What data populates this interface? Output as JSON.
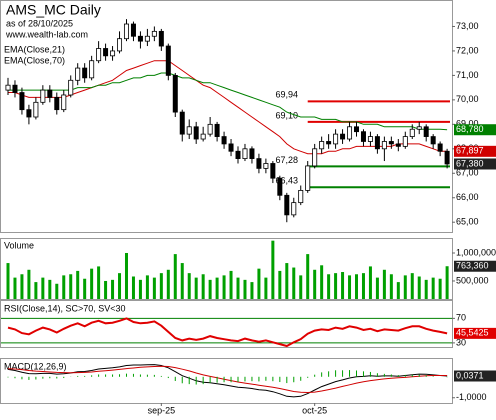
{
  "chart_data": [
    {
      "type": "candlestick",
      "title": "AMS_MC Daily",
      "subtitle": "as of 28/10/2025",
      "source": "www.wealth-lab.com",
      "open": [
        70.4,
        70.6,
        70.3,
        69.6,
        69.3,
        69.9,
        70.4,
        70.1,
        69.6,
        70.2,
        70.8,
        71.3,
        70.9,
        71.6,
        72.1,
        71.8,
        72.0,
        72.5,
        73.1,
        72.6,
        72.4,
        72.6,
        72.8,
        72.2,
        71.0,
        69.5,
        68.6,
        68.9,
        68.4,
        68.6,
        69.0,
        68.5,
        68.2,
        67.9,
        67.6,
        68.0,
        67.6,
        67.2,
        67.4,
        66.8,
        66.1,
        65.3,
        65.8,
        66.3,
        67.3,
        68.0,
        68.3,
        68.2,
        68.6,
        68.4,
        68.9,
        68.7,
        68.3,
        68.5,
        68.0,
        68.3,
        68.2,
        68.1,
        68.5,
        68.8,
        68.9,
        68.5,
        68.2,
        67.9
      ],
      "high": [
        70.9,
        70.8,
        70.5,
        69.8,
        70.1,
        70.6,
        70.6,
        70.3,
        70.4,
        71.0,
        71.5,
        71.5,
        71.8,
        72.4,
        72.3,
        72.2,
        72.8,
        73.3,
        73.2,
        72.8,
        72.9,
        73.0,
        72.9,
        72.3,
        71.1,
        69.6,
        69.2,
        69.1,
        68.9,
        69.3,
        69.1,
        68.7,
        68.4,
        68.1,
        68.2,
        68.1,
        67.8,
        67.6,
        67.5,
        66.9,
        66.2,
        66.0,
        66.5,
        67.5,
        68.2,
        68.5,
        68.6,
        68.8,
        68.8,
        69.1,
        69.1,
        68.8,
        68.7,
        68.6,
        68.5,
        68.5,
        68.4,
        68.7,
        69.0,
        69.1,
        69.0,
        68.6,
        68.3,
        68.0
      ],
      "low": [
        70.2,
        70.1,
        69.4,
        69.0,
        69.2,
        69.8,
        69.9,
        69.4,
        69.5,
        70.1,
        70.6,
        70.7,
        70.8,
        71.5,
        71.6,
        71.6,
        71.9,
        72.4,
        72.4,
        72.1,
        72.2,
        72.4,
        72.0,
        70.8,
        69.3,
        68.3,
        68.4,
        68.2,
        68.3,
        68.5,
        68.3,
        68.0,
        67.7,
        67.4,
        67.5,
        67.4,
        67.0,
        67.0,
        66.6,
        65.9,
        65.0,
        65.2,
        65.7,
        66.2,
        67.2,
        67.8,
        68.0,
        68.0,
        68.2,
        68.3,
        68.5,
        68.1,
        68.1,
        67.8,
        67.5,
        68.0,
        67.9,
        68.0,
        68.4,
        68.6,
        68.3,
        68.0,
        67.7,
        67.2
      ],
      "close": [
        70.6,
        70.3,
        69.6,
        69.3,
        69.9,
        70.4,
        70.1,
        69.6,
        70.2,
        70.8,
        71.3,
        70.9,
        71.6,
        72.1,
        71.8,
        72.0,
        72.5,
        73.1,
        72.6,
        72.4,
        72.6,
        72.8,
        72.2,
        71.0,
        69.5,
        68.6,
        68.9,
        68.4,
        68.6,
        69.0,
        68.5,
        68.2,
        67.9,
        67.6,
        68.0,
        67.6,
        67.2,
        67.4,
        66.8,
        66.1,
        65.3,
        65.8,
        66.3,
        67.3,
        68.0,
        68.3,
        68.2,
        68.6,
        68.4,
        68.9,
        68.7,
        68.3,
        68.5,
        68.0,
        68.3,
        68.2,
        68.1,
        68.5,
        68.8,
        68.9,
        68.5,
        68.2,
        67.9,
        67.38
      ],
      "close_label": "67,380",
      "series": [
        {
          "name": "EMA(Close,21)",
          "color": "#d00000",
          "last_label": "67,897",
          "values": [
            70.3,
            70.3,
            70.2,
            70.1,
            70.1,
            70.1,
            70.1,
            70.1,
            70.1,
            70.2,
            70.3,
            70.4,
            70.5,
            70.6,
            70.7,
            70.8,
            71.0,
            71.2,
            71.3,
            71.4,
            71.5,
            71.6,
            71.6,
            71.6,
            71.4,
            71.2,
            71.0,
            70.8,
            70.6,
            70.5,
            70.3,
            70.1,
            69.9,
            69.7,
            69.5,
            69.3,
            69.1,
            68.9,
            68.7,
            68.5,
            68.2,
            68.0,
            67.9,
            67.8,
            67.8,
            67.8,
            67.9,
            67.9,
            68.0,
            68.0,
            68.1,
            68.1,
            68.1,
            68.1,
            68.1,
            68.1,
            68.2,
            68.2,
            68.2,
            68.2,
            68.1,
            68.0,
            67.9,
            67.897
          ]
        },
        {
          "name": "EMA(Close,70)",
          "color": "#008000",
          "last_label": "68,780",
          "values": [
            70.4,
            70.4,
            70.4,
            70.4,
            70.4,
            70.4,
            70.4,
            70.4,
            70.4,
            70.4,
            70.5,
            70.5,
            70.5,
            70.6,
            70.6,
            70.7,
            70.7,
            70.8,
            70.9,
            70.9,
            71.0,
            71.0,
            71.1,
            71.1,
            71.0,
            70.9,
            70.9,
            70.8,
            70.7,
            70.7,
            70.6,
            70.5,
            70.4,
            70.3,
            70.2,
            70.1,
            70.0,
            69.9,
            69.8,
            69.7,
            69.5,
            69.4,
            69.3,
            69.3,
            69.3,
            69.2,
            69.2,
            69.2,
            69.1,
            69.1,
            69.1,
            69.0,
            69.0,
            69.0,
            68.9,
            68.9,
            68.9,
            68.9,
            68.9,
            68.8,
            68.8,
            68.8,
            68.8,
            68.78
          ]
        }
      ],
      "levels": [
        {
          "value": 69.94,
          "label": "69,94",
          "color": "#e00000"
        },
        {
          "value": 69.1,
          "label": "69,10",
          "color": "#e00000"
        },
        {
          "value": 67.28,
          "label": "67,28",
          "color": "#008000"
        },
        {
          "value": 66.43,
          "label": "66,43",
          "color": "#008000"
        }
      ],
      "ylim": [
        64.6,
        74
      ],
      "yticks": [
        {
          "value": 65,
          "label": "65,00"
        },
        {
          "value": 66,
          "label": "66,00"
        },
        {
          "value": 67,
          "label": "67,00"
        },
        {
          "value": 68,
          "label": "68,00"
        },
        {
          "value": 69,
          "label": "69,00"
        },
        {
          "value": 70,
          "label": "70,00"
        },
        {
          "value": 71,
          "label": "71,00"
        },
        {
          "value": 72,
          "label": "72,00"
        },
        {
          "value": 73,
          "label": "73,00"
        }
      ]
    },
    {
      "type": "bar",
      "title": "Volume",
      "color": "#00a000",
      "last_label": "763,360",
      "values": [
        820000,
        560000,
        620000,
        700000,
        480000,
        560000,
        520000,
        450000,
        600000,
        620000,
        680000,
        540000,
        720000,
        760000,
        500000,
        520000,
        640000,
        1000000,
        580000,
        520000,
        600000,
        560000,
        640000,
        700000,
        980000,
        820000,
        640000,
        560000,
        620000,
        520000,
        560000,
        600000,
        680000,
        560000,
        520000,
        480000,
        720000,
        560000,
        1220000,
        680000,
        820000,
        740000,
        600000,
        980000,
        700000,
        780000,
        620000,
        640000,
        660000,
        600000,
        620000,
        640000,
        760000,
        560000,
        700000,
        620000,
        480000,
        600000,
        640000,
        580000,
        520000,
        560000,
        540000,
        763360
      ],
      "ylim": [
        178000,
        1232000
      ],
      "yticks": [
        {
          "value": 500000,
          "label": "500,000"
        },
        {
          "value": 1000000,
          "label": "1,000,000"
        }
      ]
    },
    {
      "type": "line",
      "series": [
        {
          "name": "RSI(Close,14), SC>70, SV<30",
          "color": "#e00000",
          "last_label": "45,5425",
          "values": [
            55,
            52,
            46,
            44,
            50,
            55,
            52,
            47,
            53,
            58,
            62,
            57,
            63,
            66,
            62,
            63,
            66,
            70,
            64,
            62,
            63,
            65,
            58,
            48,
            38,
            34,
            37,
            35,
            37,
            41,
            38,
            36,
            34,
            33,
            37,
            34,
            32,
            34,
            31,
            28,
            25,
            31,
            36,
            45,
            50,
            52,
            51,
            55,
            53,
            57,
            55,
            51,
            53,
            49,
            52,
            51,
            50,
            54,
            57,
            57,
            53,
            50,
            48,
            45.5425
          ]
        }
      ],
      "ylim": [
        23.3,
        96.7
      ],
      "yticks": [
        30,
        70
      ],
      "grid": true,
      "grid_color": "#008000"
    },
    {
      "type": "line",
      "series": [
        {
          "name": "MACD(12,26,9)",
          "color": "#000000",
          "last_label": "0,0371",
          "values": [
            0.35,
            0.3,
            0.22,
            0.15,
            0.14,
            0.16,
            0.16,
            0.13,
            0.14,
            0.18,
            0.24,
            0.25,
            0.3,
            0.37,
            0.4,
            0.43,
            0.47,
            0.54,
            0.56,
            0.56,
            0.57,
            0.58,
            0.54,
            0.43,
            0.24,
            0.05,
            -0.07,
            -0.19,
            -0.26,
            -0.28,
            -0.33,
            -0.38,
            -0.44,
            -0.5,
            -0.52,
            -0.56,
            -0.62,
            -0.64,
            -0.71,
            -0.81,
            -0.93,
            -0.96,
            -0.93,
            -0.8,
            -0.63,
            -0.47,
            -0.35,
            -0.23,
            -0.15,
            -0.06,
            0.0,
            0.02,
            0.05,
            0.03,
            0.04,
            0.04,
            0.03,
            0.06,
            0.1,
            0.13,
            0.12,
            0.09,
            0.06,
            0.0371
          ]
        },
        {
          "color": "#d00000",
          "values": [
            0.38,
            0.37,
            0.34,
            0.3,
            0.27,
            0.25,
            0.23,
            0.21,
            0.2,
            0.19,
            0.2,
            0.21,
            0.23,
            0.26,
            0.29,
            0.32,
            0.35,
            0.39,
            0.42,
            0.45,
            0.47,
            0.49,
            0.5,
            0.49,
            0.44,
            0.36,
            0.28,
            0.18,
            0.09,
            0.02,
            -0.05,
            -0.12,
            -0.18,
            -0.25,
            -0.3,
            -0.35,
            -0.4,
            -0.45,
            -0.5,
            -0.56,
            -0.63,
            -0.7,
            -0.74,
            -0.75,
            -0.73,
            -0.68,
            -0.61,
            -0.54,
            -0.46,
            -0.38,
            -0.3,
            -0.24,
            -0.18,
            -0.14,
            -0.1,
            -0.07,
            -0.05,
            -0.03,
            0.0,
            0.03,
            0.05,
            0.06,
            0.06,
            0.06
          ]
        },
        {
          "color": "#00a000",
          "style": "bar",
          "values": [
            -0.03,
            -0.07,
            -0.12,
            -0.15,
            -0.13,
            -0.09,
            -0.07,
            -0.08,
            -0.06,
            -0.01,
            0.04,
            0.04,
            0.07,
            0.11,
            0.11,
            0.11,
            0.12,
            0.15,
            0.14,
            0.11,
            0.1,
            0.09,
            0.04,
            -0.06,
            -0.2,
            -0.31,
            -0.35,
            -0.37,
            -0.35,
            -0.3,
            -0.28,
            -0.26,
            -0.26,
            -0.25,
            -0.22,
            -0.21,
            -0.22,
            -0.19,
            -0.21,
            -0.25,
            -0.3,
            -0.26,
            -0.19,
            -0.05,
            0.1,
            0.21,
            0.26,
            0.31,
            0.31,
            0.32,
            0.3,
            0.26,
            0.23,
            0.17,
            0.14,
            0.11,
            0.08,
            0.09,
            0.1,
            0.1,
            0.07,
            0.03,
            0.0,
            -0.02
          ]
        }
      ],
      "categories": [
        null,
        null,
        null,
        null,
        null,
        null,
        null,
        null,
        null,
        null,
        null,
        null,
        null,
        null,
        null,
        null,
        null,
        null,
        null,
        null,
        null,
        null,
        "sep-25",
        null,
        null,
        null,
        null,
        null,
        null,
        null,
        null,
        null,
        null,
        null,
        null,
        null,
        null,
        null,
        null,
        null,
        null,
        null,
        null,
        null,
        "oct-25",
        null,
        null,
        null,
        null,
        null,
        null,
        null,
        null,
        null,
        null,
        null,
        null,
        null,
        null,
        null,
        null,
        null,
        null,
        null
      ],
      "ylim": [
        -1.25,
        0.8
      ],
      "yticks": [
        {
          "value": -1,
          "label": "-1,0000"
        }
      ]
    }
  ]
}
